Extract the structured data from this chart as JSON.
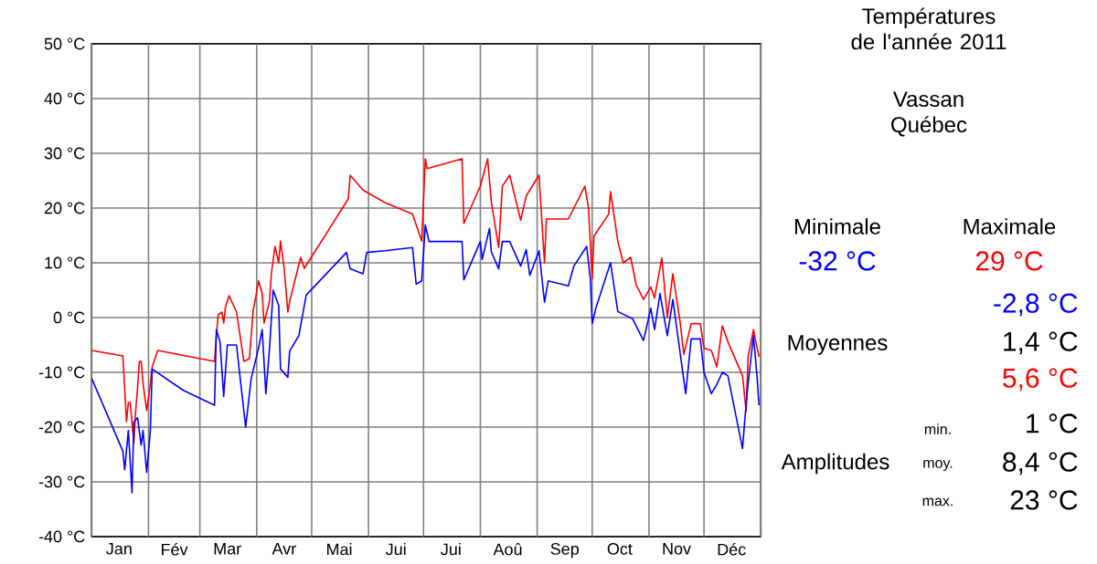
{
  "chart_data": {
    "type": "line",
    "title": "Températures de l'année 2011",
    "subtitle": "Vassan Québec",
    "xlim": [
      "2011-01-01",
      "2012-01-01"
    ],
    "ylim": [
      -40,
      50
    ],
    "xticks": [
      {
        "value": "2011-01-01",
        "label": null
      },
      {
        "value": "2011-01-16",
        "label": "Jan"
      },
      {
        "value": "2011-02-01",
        "label": null
      },
      {
        "value": "2011-02-15",
        "label": "Fév"
      },
      {
        "value": "2011-03-01",
        "label": null
      },
      {
        "value": "2011-03-16",
        "label": "Mar"
      },
      {
        "value": "2011-04-01",
        "label": null
      },
      {
        "value": "2011-04-16",
        "label": "Avr"
      },
      {
        "value": "2011-05-01",
        "label": null
      },
      {
        "value": "2011-05-16",
        "label": "Mai"
      },
      {
        "value": "2011-06-01",
        "label": null
      },
      {
        "value": "2011-06-16",
        "label": "Jui"
      },
      {
        "value": "2011-07-01",
        "label": null
      },
      {
        "value": "2011-07-16",
        "label": "Jui"
      },
      {
        "value": "2011-08-01",
        "label": null
      },
      {
        "value": "2011-08-16",
        "label": "Aoû"
      },
      {
        "value": "2011-09-01",
        "label": null
      },
      {
        "value": "2011-09-16",
        "label": "Sep"
      },
      {
        "value": "2011-10-01",
        "label": null
      },
      {
        "value": "2011-10-16",
        "label": "Oct"
      },
      {
        "value": "2011-11-01",
        "label": null
      },
      {
        "value": "2011-11-16",
        "label": "Nov"
      },
      {
        "value": "2011-12-01",
        "label": null
      },
      {
        "value": "2011-12-16",
        "label": "Déc"
      },
      {
        "value": "2012-01-01",
        "label": null
      }
    ],
    "yticks": [
      {
        "value": -40,
        "label": "-40 °C"
      },
      {
        "value": -30,
        "label": "-30 °C"
      },
      {
        "value": -20,
        "label": "-20 °C"
      },
      {
        "value": -10,
        "label": "-10 °C"
      },
      {
        "value": 0,
        "label": "0 °C"
      },
      {
        "value": 10,
        "label": "10 °C"
      },
      {
        "value": 20,
        "label": "20 °C"
      },
      {
        "value": 30,
        "label": "30 °C"
      },
      {
        "value": 40,
        "label": "40 °C"
      },
      {
        "value": 50,
        "label": "50 °C"
      }
    ],
    "grid": true,
    "series": [
      {
        "color": "#ff0000",
        "x": [
          "2011-01-01",
          "2011-01-18",
          "2011-01-19",
          "2011-01-20",
          "2011-01-21",
          "2011-01-22",
          "2011-01-24",
          "2011-01-25",
          "2011-01-26",
          "2011-01-27",
          "2011-01-28",
          "2011-01-29",
          "2011-01-31",
          "2011-02-01",
          "2011-02-02",
          "2011-02-03",
          "2011-02-06",
          "2011-03-09",
          "2011-03-10",
          "2011-03-11",
          "2011-03-13",
          "2011-03-14",
          "2011-03-15",
          "2011-03-17",
          "2011-03-21",
          "2011-03-25",
          "2011-03-28",
          "2011-03-30",
          "2011-04-02",
          "2011-04-04",
          "2011-04-05",
          "2011-04-08",
          "2011-04-09",
          "2011-04-11",
          "2011-04-13",
          "2011-04-14",
          "2011-04-16",
          "2011-04-18",
          "2011-04-19",
          "2011-04-25",
          "2011-04-27",
          "2011-05-21",
          "2011-05-22",
          "2011-05-29",
          "2011-06-10",
          "2011-06-25",
          "2011-06-30",
          "2011-07-02",
          "2011-07-03",
          "2011-07-22",
          "2011-07-23",
          "2011-08-01",
          "2011-08-05",
          "2011-08-07",
          "2011-08-11",
          "2011-08-13",
          "2011-08-17",
          "2011-08-23",
          "2011-08-26",
          "2011-09-02",
          "2011-09-05",
          "2011-09-06",
          "2011-09-18",
          "2011-09-27",
          "2011-09-29",
          "2011-10-01",
          "2011-10-02",
          "2011-10-10",
          "2011-10-11",
          "2011-10-15",
          "2011-10-18",
          "2011-10-22",
          "2011-10-25",
          "2011-10-29",
          "2011-11-02",
          "2011-11-04",
          "2011-11-08",
          "2011-11-11",
          "2011-11-14",
          "2011-11-18",
          "2011-11-20",
          "2011-11-24",
          "2011-11-29",
          "2011-12-01",
          "2011-12-05",
          "2011-12-08",
          "2011-12-11",
          "2011-12-14",
          "2011-12-22",
          "2011-12-24",
          "2011-12-25",
          "2011-12-28",
          "2011-12-30",
          "2011-12-31"
        ],
        "values": [
          -6,
          -7,
          -13,
          -19,
          -15.5,
          -15.5,
          -23,
          -17,
          -13,
          -8,
          -8,
          -12,
          -17,
          -14.7,
          -12,
          -9,
          -6,
          -8,
          -3.3,
          0.5,
          1,
          -1,
          2,
          4,
          1,
          -8,
          -7.5,
          1,
          6.7,
          4.4,
          -1,
          3,
          8,
          13,
          10,
          14,
          9,
          1,
          3,
          11,
          9,
          21.7,
          26,
          23.3,
          21,
          18.9,
          14,
          29,
          27.2,
          29,
          17.2,
          24,
          29,
          21.1,
          12.8,
          24,
          26,
          17.8,
          22.2,
          26,
          10,
          18,
          18,
          24,
          20,
          7.1,
          14.9,
          18.9,
          23,
          13.9,
          10,
          11,
          6,
          3.3,
          5.6,
          3.6,
          10.9,
          0,
          8,
          -0.9,
          -6.7,
          -1.1,
          -1.1,
          -5.6,
          -6,
          -9,
          -1.5,
          -4.4,
          -10.6,
          -17.2,
          -7.2,
          -2.2,
          -5.6,
          -7.2
        ]
      },
      {
        "color": "#0000ff",
        "x": [
          "2011-01-01",
          "2011-01-18",
          "2011-01-19",
          "2011-01-21",
          "2011-01-23",
          "2011-01-24",
          "2011-01-26",
          "2011-01-28",
          "2011-01-29",
          "2011-01-31",
          "2011-02-02",
          "2011-02-03",
          "2011-02-20",
          "2011-03-09",
          "2011-03-10",
          "2011-03-12",
          "2011-03-14",
          "2011-03-16",
          "2011-03-21",
          "2011-03-23",
          "2011-03-26",
          "2011-03-29",
          "2011-04-02",
          "2011-04-04",
          "2011-04-06",
          "2011-04-08",
          "2011-04-10",
          "2011-04-13",
          "2011-04-14",
          "2011-04-18",
          "2011-04-19",
          "2011-04-24",
          "2011-04-28",
          "2011-05-20",
          "2011-05-22",
          "2011-05-29",
          "2011-05-31",
          "2011-06-10",
          "2011-06-25",
          "2011-06-27",
          "2011-06-30",
          "2011-07-02",
          "2011-07-04",
          "2011-07-22",
          "2011-07-23",
          "2011-08-01",
          "2011-08-02",
          "2011-08-06",
          "2011-08-07",
          "2011-08-11",
          "2011-08-13",
          "2011-08-17",
          "2011-08-23",
          "2011-08-26",
          "2011-08-28",
          "2011-09-02",
          "2011-09-05",
          "2011-09-07",
          "2011-09-18",
          "2011-09-21",
          "2011-09-28",
          "2011-09-30",
          "2011-10-01",
          "2011-10-03",
          "2011-10-11",
          "2011-10-15",
          "2011-10-23",
          "2011-10-29",
          "2011-11-02",
          "2011-11-04",
          "2011-11-07",
          "2011-11-11",
          "2011-11-14",
          "2011-11-21",
          "2011-11-24",
          "2011-11-29",
          "2011-12-01",
          "2011-12-05",
          "2011-12-08",
          "2011-12-11",
          "2011-12-14",
          "2011-12-22",
          "2011-12-24",
          "2011-12-25",
          "2011-12-28",
          "2011-12-30",
          "2011-12-31"
        ],
        "values": [
          -11.1,
          -24.4,
          -27.8,
          -20.6,
          -32,
          -19,
          -18.3,
          -23.3,
          -20.6,
          -28.3,
          -20.6,
          -9.4,
          -13.3,
          -16,
          -2.2,
          -4.4,
          -14.4,
          -5,
          -5,
          -11.1,
          -20,
          -11.1,
          -5.6,
          -2.2,
          -13.9,
          -5.6,
          5,
          2.2,
          -9.4,
          -10.9,
          -6.1,
          -3.3,
          4.1,
          11.9,
          8.9,
          8,
          11.9,
          12.2,
          12.8,
          6.1,
          6.7,
          16.9,
          13.9,
          13.9,
          6.9,
          13.9,
          10.6,
          16.3,
          12,
          8.9,
          13.9,
          13.9,
          9.4,
          12.4,
          7.7,
          12.2,
          2.8,
          6.7,
          5.8,
          9.4,
          13,
          7.1,
          -1.1,
          1.7,
          10,
          1.1,
          -0.2,
          -4.2,
          1.7,
          -2.2,
          4.4,
          -3.3,
          3.3,
          -13.9,
          -3.9,
          -3.9,
          -10,
          -13.9,
          -12.2,
          -10,
          -10.6,
          -23.9,
          -15.6,
          -12.2,
          -3.3,
          -11.1,
          -16
        ]
      }
    ],
    "annotations": [
      "Minimale",
      "Maximale",
      "-32 °C",
      "29 °C",
      "-2,8 °C",
      "Moyennes",
      "1,4 °C",
      "5,6 °C",
      "min.",
      "1 °C",
      "Amplitudes",
      "moy.",
      "8,4 °C",
      "max.",
      "23 °C"
    ]
  }
}
